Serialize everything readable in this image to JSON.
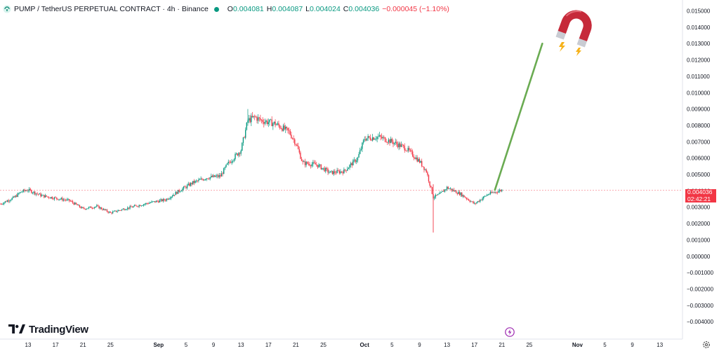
{
  "header": {
    "title": "PUMP / TetherUS PERPETUAL CONTRACT · 4h · Binance",
    "open_label": "O",
    "open": "0.004081",
    "high_label": "H",
    "high": "0.004087",
    "low_label": "L",
    "low": "0.004024",
    "close_label": "C",
    "close": "0.004036",
    "change": "−0.000045 (−1.10%)",
    "status_color": "#089981"
  },
  "price_tag": {
    "price": "0.004036",
    "countdown": "02:42:21",
    "color": "#f23645"
  },
  "branding": {
    "name": "TradingView"
  },
  "icons": [
    "symbol-logo-icon",
    "magnet-icon",
    "lightning-icon",
    "settings-icon",
    "tradingview-logo-icon"
  ],
  "chart_data": {
    "type": "candlestick",
    "title": "PUMP / TetherUS PERPETUAL CONTRACT · 4h · Binance",
    "current_price": 0.004036,
    "price_line": 0.004036,
    "ylim": [
      -0.0041,
      0.0152
    ],
    "y_ticks": [
      0.015,
      0.014,
      0.013,
      0.012,
      0.011,
      0.01,
      0.009,
      0.008,
      0.007,
      0.006,
      0.005,
      0.004,
      0.003,
      0.002,
      0.001,
      0.0,
      -0.001,
      -0.002,
      -0.003,
      -0.004
    ],
    "y_tick_labels": [
      "0.015000",
      "0.014000",
      "0.013000",
      "0.012000",
      "0.011000",
      "0.010000",
      "0.009000",
      "0.008000",
      "0.007000",
      "0.006000",
      "0.005000",
      "0.004000",
      "0.003000",
      "0.002000",
      "0.001000",
      "0.000000",
      "−0.001000",
      "−0.002000",
      "−0.003000",
      "−0.004000"
    ],
    "x_ticks": [
      "13",
      "17",
      "21",
      "25",
      "Sep",
      "5",
      "9",
      "13",
      "17",
      "21",
      "25",
      "Oct",
      "5",
      "9",
      "13",
      "17",
      "21",
      "25",
      "Nov",
      "5",
      "9",
      "13"
    ],
    "x_tick_bold": [
      "Sep",
      "Oct",
      "Nov"
    ],
    "price_path": [
      [
        "Aug 9",
        0.0032
      ],
      [
        "Aug 11",
        0.0036
      ],
      [
        "Aug 12",
        0.00395
      ],
      [
        "Aug 13",
        0.00405
      ],
      [
        "Aug 15",
        0.0037
      ],
      [
        "Aug 17",
        0.00355
      ],
      [
        "Aug 19",
        0.0034
      ],
      [
        "Aug 21",
        0.0029
      ],
      [
        "Aug 23",
        0.00305
      ],
      [
        "Aug 25",
        0.00265
      ],
      [
        "Aug 27",
        0.0029
      ],
      [
        "Aug 29",
        0.0031
      ],
      [
        "Aug 31",
        0.0033
      ],
      [
        "Sep 2",
        0.00345
      ],
      [
        "Sep 4",
        0.004
      ],
      [
        "Sep 6",
        0.0045
      ],
      [
        "Sep 8",
        0.0048
      ],
      [
        "Sep 10",
        0.0049
      ],
      [
        "Sep 11",
        0.0056
      ],
      [
        "Sep 13",
        0.0065
      ],
      [
        "Sep 14",
        0.0083
      ],
      [
        "Sep 15",
        0.0085
      ],
      [
        "Sep 16",
        0.0083
      ],
      [
        "Sep 18",
        0.0081
      ],
      [
        "Sep 20",
        0.0076
      ],
      [
        "Sep 21",
        0.0069
      ],
      [
        "Sep 22",
        0.0057
      ],
      [
        "Sep 24",
        0.0056
      ],
      [
        "Sep 26",
        0.0051
      ],
      [
        "Sep 28",
        0.0052
      ],
      [
        "Sep 30",
        0.006
      ],
      [
        "Oct 1",
        0.0072
      ],
      [
        "Oct 3",
        0.0073
      ],
      [
        "Oct 5",
        0.007
      ],
      [
        "Oct 7",
        0.0066
      ],
      [
        "Oct 9",
        0.0058
      ],
      [
        "Oct 10",
        0.0052
      ],
      [
        "Oct 11",
        0.0036
      ],
      [
        "Oct 12",
        0.0038
      ],
      [
        "Oct 13",
        0.0042
      ],
      [
        "Oct 15",
        0.0038
      ],
      [
        "Oct 17",
        0.0032
      ],
      [
        "Oct 19",
        0.0038
      ],
      [
        "Oct 21",
        0.00405
      ]
    ],
    "wick_low": {
      "date": "Oct 11",
      "value": 0.00145
    },
    "wick_high": {
      "date": "Sep 14",
      "value": 0.009
    },
    "projection": {
      "from": [
        "Oct 21",
        0.00405
      ],
      "to": [
        "Oct 23",
        0.013
      ],
      "color": "#6aab52"
    },
    "grid": false,
    "legend": "none",
    "colors": {
      "up": "#089981",
      "down": "#f23645",
      "price_line": "#f23645"
    }
  }
}
